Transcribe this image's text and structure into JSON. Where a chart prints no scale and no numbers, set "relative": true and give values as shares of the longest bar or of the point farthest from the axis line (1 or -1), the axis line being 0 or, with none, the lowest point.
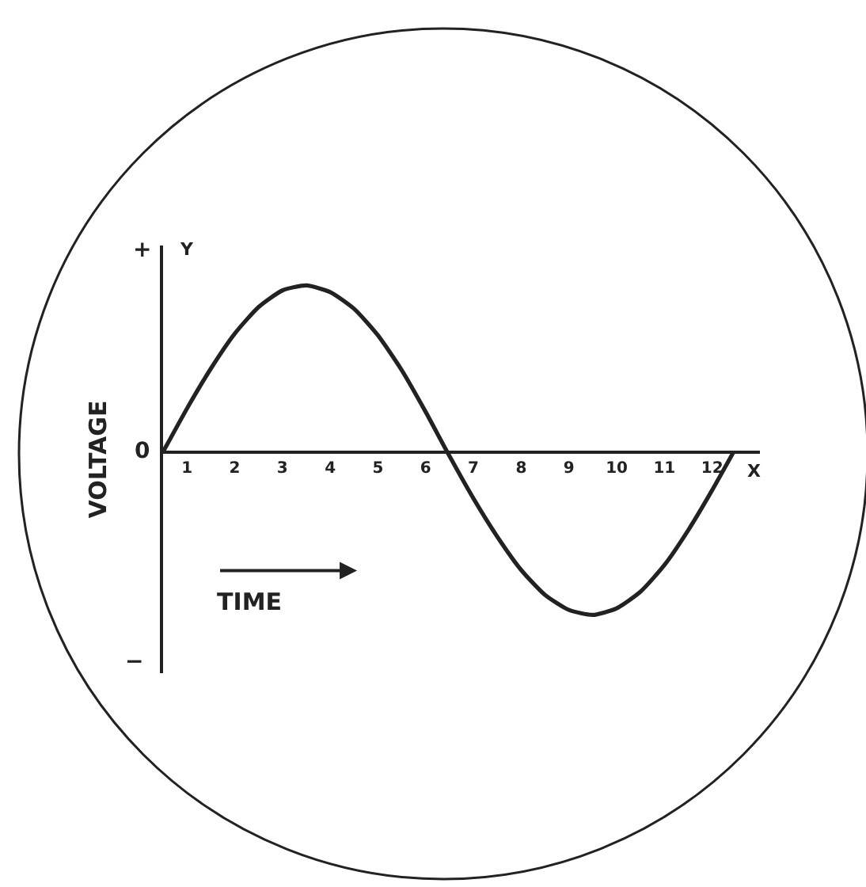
{
  "chart_data": {
    "type": "line",
    "xlabel": "TIME",
    "ylabel": "VOLTAGE",
    "annotations": [
      "Y",
      "X",
      "+",
      "0",
      "−"
    ],
    "x": [
      0.5,
      1,
      1.5,
      2,
      2.5,
      3,
      3.5,
      4,
      4.5,
      5,
      5.5,
      6,
      6.45,
      7,
      7.5,
      8,
      8.5,
      9,
      9.5,
      10,
      10.5,
      11,
      11.5,
      12,
      12.45
    ],
    "values": [
      0,
      0.26,
      0.5,
      0.71,
      0.87,
      0.97,
      1,
      0.96,
      0.86,
      0.7,
      0.49,
      0.24,
      0,
      -0.28,
      -0.51,
      -0.71,
      -0.86,
      -0.95,
      -0.98,
      -0.94,
      -0.84,
      -0.68,
      -0.47,
      -0.23,
      0
    ],
    "color": "#222222",
    "relative": true,
    "line_style": "solid",
    "xlim": [
      0.5,
      13
    ],
    "xticks": [
      1,
      2,
      3,
      4,
      5,
      6,
      7,
      8,
      9,
      10,
      11,
      12
    ]
  }
}
